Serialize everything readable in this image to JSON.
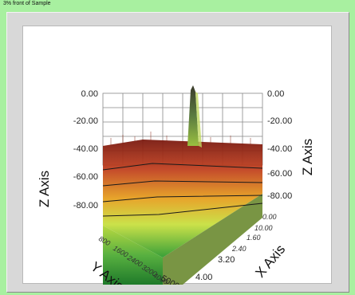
{
  "window": {
    "title": "3% front of Sample"
  },
  "chart_data": {
    "type": "surface3d",
    "z_axis_label": "Z Axis",
    "y_axis_label": "Y Axis",
    "x_axis_label": "X Axis",
    "z_ticks": [
      "0.00",
      "-20.00",
      "-40.00",
      "-60.00",
      "-80.00"
    ],
    "z_ticks_right": [
      "0.00",
      "-20.00",
      "-40.00",
      "-60.00",
      "-80.00"
    ],
    "x_ticks": [
      "0.00",
      "10.00",
      "1.60",
      "2.40",
      "3.20",
      "4.00"
    ],
    "y_ticks": [
      "800",
      "1600",
      "2400",
      "3200",
      "4000",
      "5000"
    ],
    "zlim": [
      -80,
      0
    ],
    "colormap": [
      "#2e9a2e",
      "#c8e040",
      "#e6a020",
      "#c04020",
      "#7a1a10"
    ],
    "peak": {
      "z": 0.0
    }
  }
}
